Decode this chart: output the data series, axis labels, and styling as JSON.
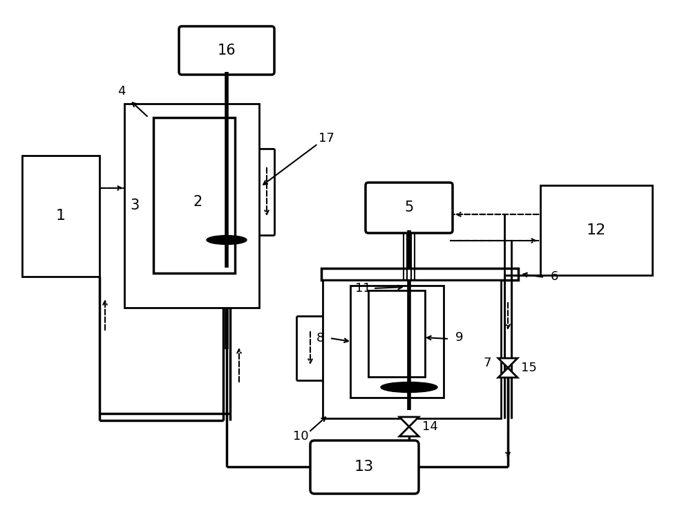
{
  "bg_color": "#ffffff",
  "line_color": "#000000",
  "fig_width": 10.0,
  "fig_height": 7.52,
  "dpi": 100
}
